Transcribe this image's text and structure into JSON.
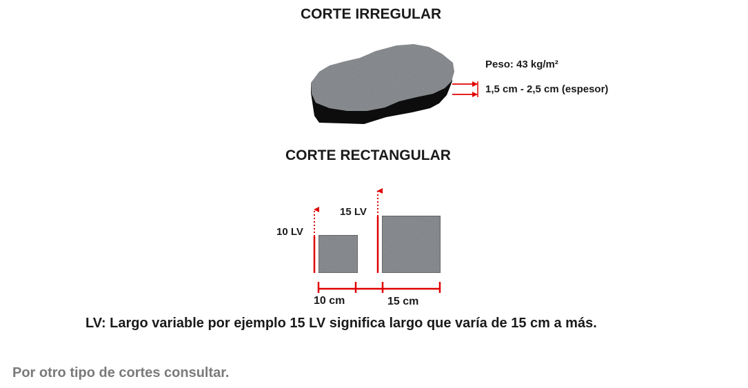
{
  "irregular": {
    "title": "CORTE IRREGULAR",
    "weight_label": "Peso: 43 kg/m²",
    "thickness_label": "1,5 cm - 2,5  cm (espesor)"
  },
  "rectangular": {
    "title": "CORTE RECTANGULAR",
    "small_height_label": "10 LV",
    "large_height_label": "15 LV",
    "small_width_label": "10 cm",
    "large_width_label": "15 cm"
  },
  "legend": "LV: Largo variable por ejemplo 15 LV  significa largo que varía de 15 cm a más.",
  "footer": "Por otro tipo de cortes consultar.",
  "colors": {
    "dimension_lines": "#e00000",
    "stone_face": "#8f9296",
    "stone_edge": "#0d0d0d",
    "footer_text": "#7a7a7a"
  }
}
